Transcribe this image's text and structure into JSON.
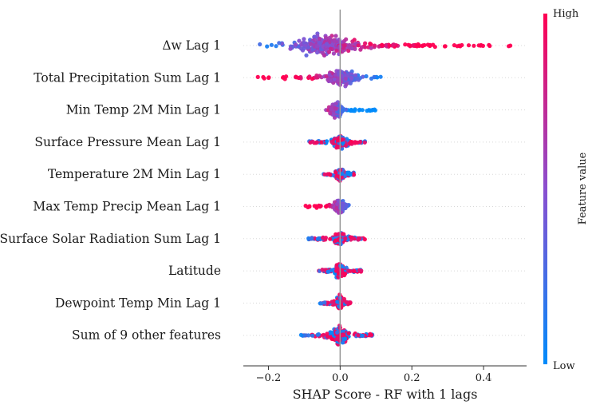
{
  "chart_data": {
    "type": "beeswarm",
    "xlabel": "SHAP Score - RF with 1 lags",
    "xlim": [
      -0.27,
      0.52
    ],
    "xticks": [
      -0.2,
      0.0,
      0.2,
      0.4
    ],
    "xtick_labels": [
      "−0.2",
      "0.0",
      "0.2",
      "0.4"
    ],
    "colorbar": {
      "title": "Feature value",
      "high_label": "High",
      "low_label": "Low",
      "low_color": "#008bfb",
      "high_color": "#ff0052"
    },
    "features": [
      {
        "label": "Δw Lag 1",
        "shap_min": -0.23,
        "shap_max": 0.48,
        "mode": -0.05,
        "density": 1.0,
        "correlation": "positive"
      },
      {
        "label": "Total Precipitation Sum Lag 1",
        "shap_min": -0.24,
        "shap_max": 0.13,
        "mode": 0.01,
        "density": 0.6,
        "correlation": "negative"
      },
      {
        "label": "Min Temp 2M Min Lag 1",
        "shap_min": -0.04,
        "shap_max": 0.1,
        "mode": -0.01,
        "density": 0.55,
        "correlation": "negative"
      },
      {
        "label": "Surface Pressure Mean Lag 1",
        "shap_min": -0.09,
        "shap_max": 0.07,
        "mode": 0.0,
        "density": 0.5,
        "correlation": "mixed"
      },
      {
        "label": "Temperature 2M Min Lag 1",
        "shap_min": -0.05,
        "shap_max": 0.04,
        "mode": 0.0,
        "density": 0.5,
        "correlation": "mixed"
      },
      {
        "label": "Max Temp Precip Mean Lag 1",
        "shap_min": -0.1,
        "shap_max": 0.03,
        "mode": 0.0,
        "density": 0.4,
        "correlation": "negative"
      },
      {
        "label": "Surface Solar Radiation Sum Lag 1",
        "shap_min": -0.09,
        "shap_max": 0.07,
        "mode": 0.0,
        "density": 0.45,
        "correlation": "mixed"
      },
      {
        "label": "Latitude",
        "shap_min": -0.06,
        "shap_max": 0.06,
        "mode": 0.0,
        "density": 0.45,
        "correlation": "mixed"
      },
      {
        "label": "Dewpoint Temp Min Lag 1",
        "shap_min": -0.06,
        "shap_max": 0.03,
        "mode": 0.0,
        "density": 0.4,
        "correlation": "mixed"
      },
      {
        "label": "Sum of 9 other features",
        "shap_min": -0.11,
        "shap_max": 0.09,
        "mode": 0.0,
        "density": 0.75,
        "correlation": "mixed"
      }
    ]
  }
}
